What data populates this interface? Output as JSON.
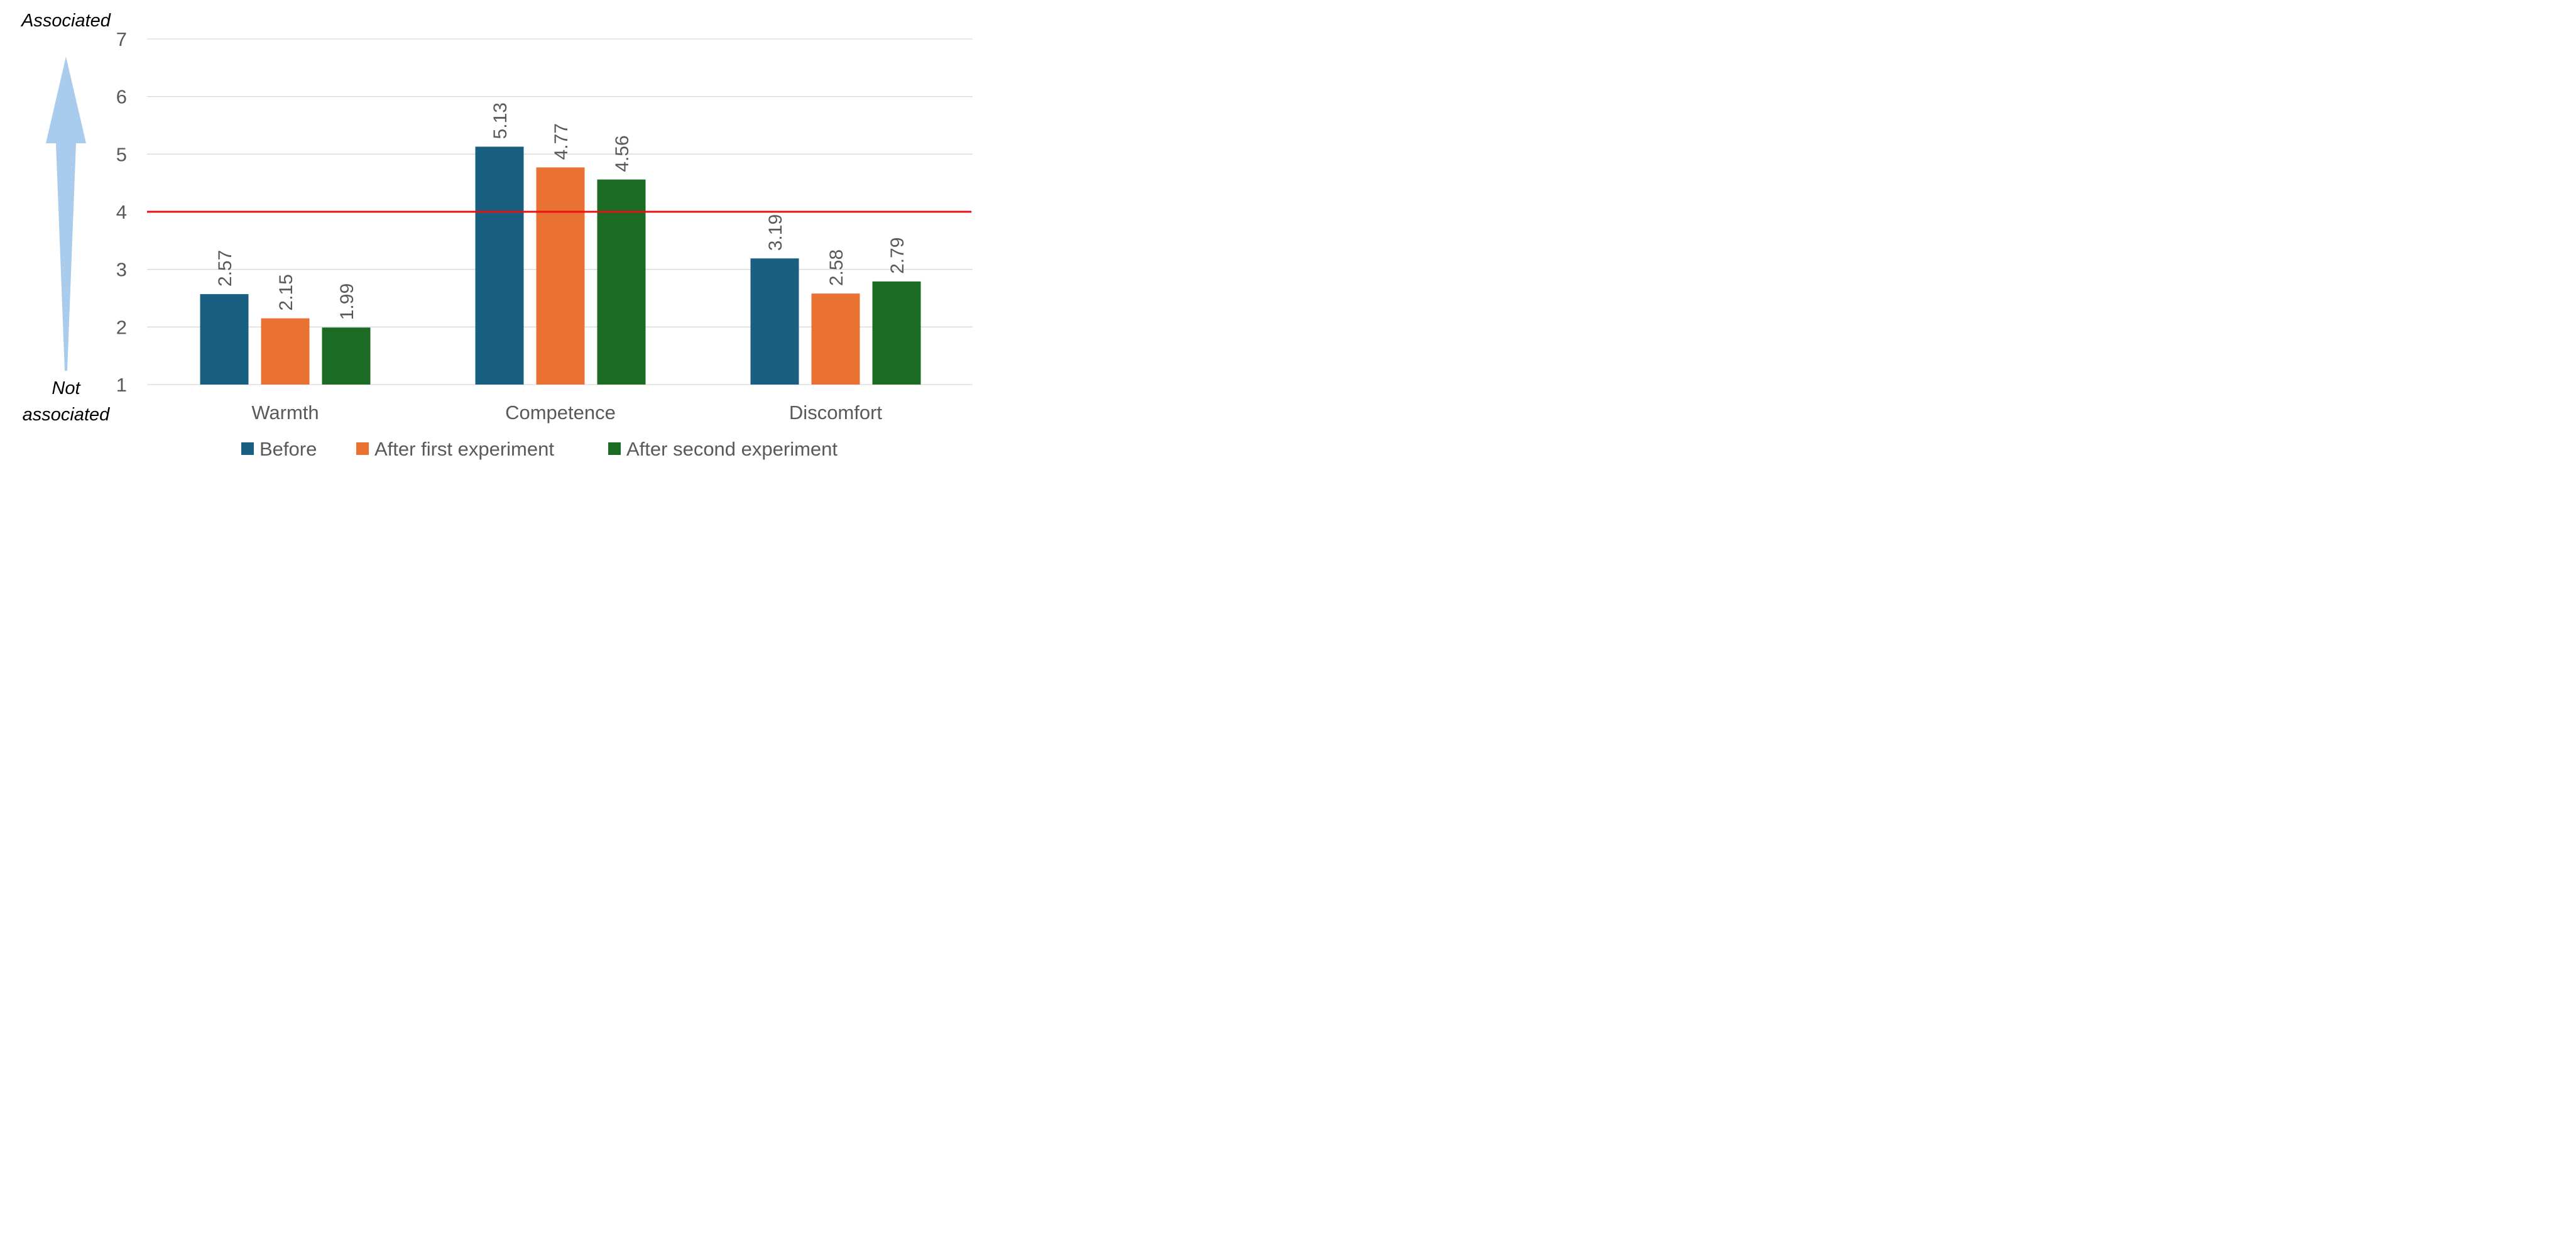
{
  "chart_data": {
    "type": "bar",
    "categories": [
      "Warmth",
      "Competence",
      "Discomfort"
    ],
    "series": [
      {
        "name": "Before",
        "color": "#185f82",
        "values": [
          2.57,
          5.13,
          3.19
        ]
      },
      {
        "name": "After first experiment",
        "color": "#e97132",
        "values": [
          2.15,
          4.77,
          2.58
        ]
      },
      {
        "name": "After second experiment",
        "color": "#1c6b25",
        "values": [
          1.99,
          4.56,
          2.79
        ]
      }
    ],
    "yticks": [
      "1",
      "2",
      "3",
      "4",
      "5",
      "6",
      "7"
    ],
    "ylim": [
      1,
      7
    ],
    "reference_line": {
      "value": 4,
      "color": "#e81010"
    },
    "grid": true,
    "legend_position": "bottom",
    "axis_annotation": {
      "top": "Associated",
      "bottom_line1": "Not",
      "bottom_line2": "associated",
      "arrow_color": "#a9cbec"
    }
  }
}
